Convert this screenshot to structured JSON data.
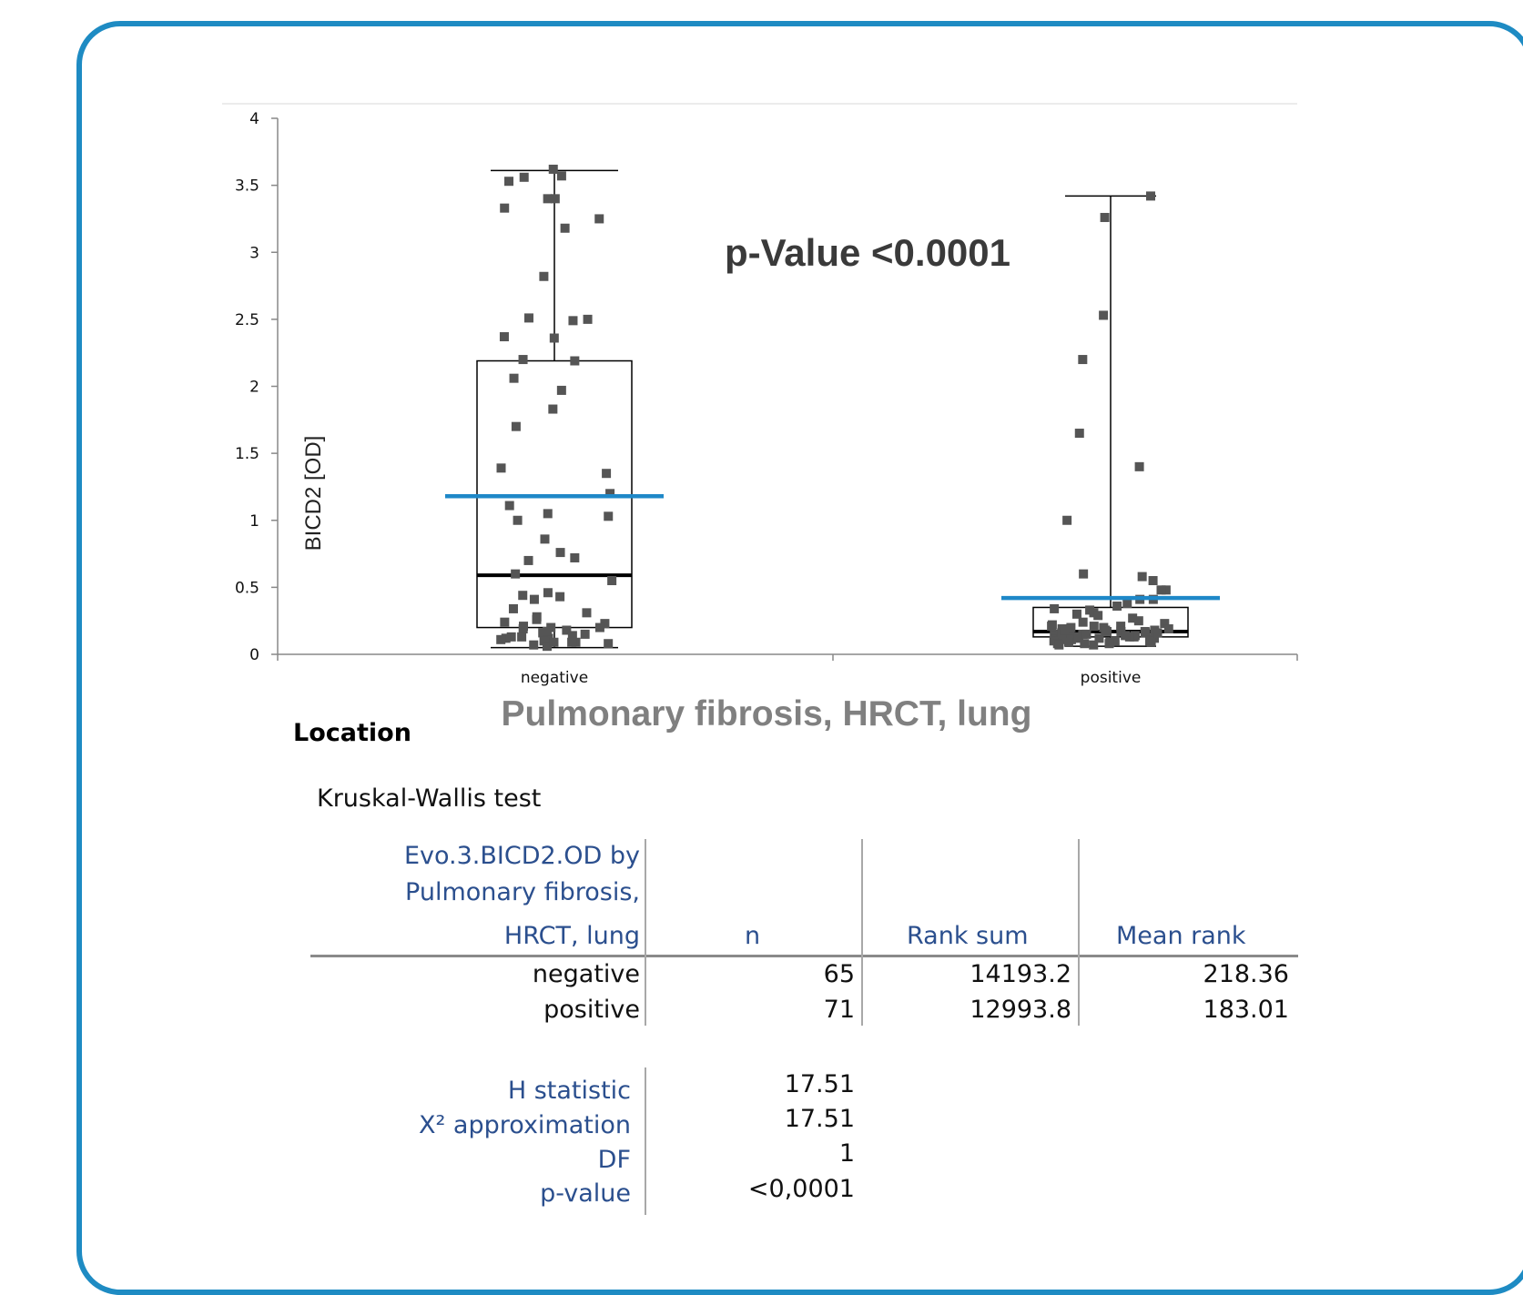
{
  "chart_data": {
    "type": "box",
    "ylabel": "BICD2 [OD]",
    "xlabel": "Pulmonary fibrosis, HRCT, lung",
    "ylim": [
      0,
      4
    ],
    "yticks": [
      "0",
      "0.5",
      "1",
      "1.5",
      "2",
      "2.5",
      "3",
      "3.5",
      "4"
    ],
    "categories": [
      "negative",
      "positive"
    ],
    "annotation": "p-Value <0.0001",
    "corner_label": "Location",
    "boxes": [
      {
        "category": "negative",
        "min": 0.05,
        "q1": 0.2,
        "median": 0.59,
        "q3": 2.19,
        "max": 3.61,
        "mean": 1.18
      },
      {
        "category": "positive",
        "min": 0.06,
        "q1": 0.13,
        "median": 0.17,
        "q3": 0.35,
        "max": 3.42,
        "mean": 0.42
      }
    ],
    "points": {
      "negative": [
        3.62,
        3.57,
        3.53,
        3.56,
        3.4,
        3.4,
        3.33,
        3.25,
        3.18,
        2.82,
        2.51,
        2.5,
        2.49,
        2.37,
        2.36,
        2.2,
        2.19,
        2.06,
        1.97,
        1.83,
        1.7,
        1.39,
        1.35,
        1.2,
        1.11,
        1.05,
        1.03,
        1.0,
        0.86,
        0.76,
        0.72,
        0.7,
        0.6,
        0.55,
        0.46,
        0.44,
        0.43,
        0.41,
        0.34,
        0.31,
        0.28,
        0.26,
        0.24,
        0.23,
        0.21,
        0.2,
        0.2,
        0.19,
        0.18,
        0.16,
        0.15,
        0.14,
        0.13,
        0.13,
        0.12,
        0.12,
        0.11,
        0.1,
        0.09,
        0.09,
        0.08,
        0.07,
        0.06,
        0.09,
        0.17
      ],
      "positive": [
        3.42,
        3.26,
        2.53,
        2.2,
        1.65,
        1.4,
        1.0,
        0.6,
        0.58,
        0.55,
        0.48,
        0.48,
        0.41,
        0.41,
        0.38,
        0.36,
        0.34,
        0.33,
        0.31,
        0.3,
        0.29,
        0.27,
        0.25,
        0.24,
        0.23,
        0.22,
        0.21,
        0.21,
        0.2,
        0.19,
        0.19,
        0.18,
        0.18,
        0.17,
        0.17,
        0.16,
        0.16,
        0.16,
        0.15,
        0.15,
        0.14,
        0.14,
        0.13,
        0.13,
        0.12,
        0.12,
        0.12,
        0.11,
        0.11,
        0.11,
        0.1,
        0.1,
        0.1,
        0.09,
        0.09,
        0.09,
        0.08,
        0.08,
        0.08,
        0.07,
        0.07,
        0.13,
        0.15,
        0.17,
        0.19,
        0.2,
        0.21,
        0.14,
        0.16,
        0.12,
        0.18
      ]
    }
  },
  "stats": {
    "title": "Kruskal-Wallis test",
    "header": {
      "group_lines": [
        "Evo.3.BICD2.OD by",
        "Pulmonary fibrosis,",
        "HRCT, lung"
      ],
      "n": "n",
      "rank_sum": "Rank sum",
      "mean_rank": "Mean rank"
    },
    "rows": [
      {
        "group": "negative",
        "n": "65",
        "rank_sum": "14193.2",
        "mean_rank": "218.36"
      },
      {
        "group": "positive",
        "n": "71",
        "rank_sum": "12993.8",
        "mean_rank": "183.01"
      }
    ],
    "summary": [
      {
        "label": "H statistic",
        "value": "17.51"
      },
      {
        "label": "X² approximation",
        "value": "17.51"
      },
      {
        "label": "DF",
        "value": "1"
      },
      {
        "label": "p-value",
        "value": "<0,0001"
      }
    ]
  },
  "colors": {
    "frame": "#1e8bc3",
    "mean_line": "#1e88c8",
    "points": "#555555",
    "stats_label": "#2b4f8e"
  }
}
